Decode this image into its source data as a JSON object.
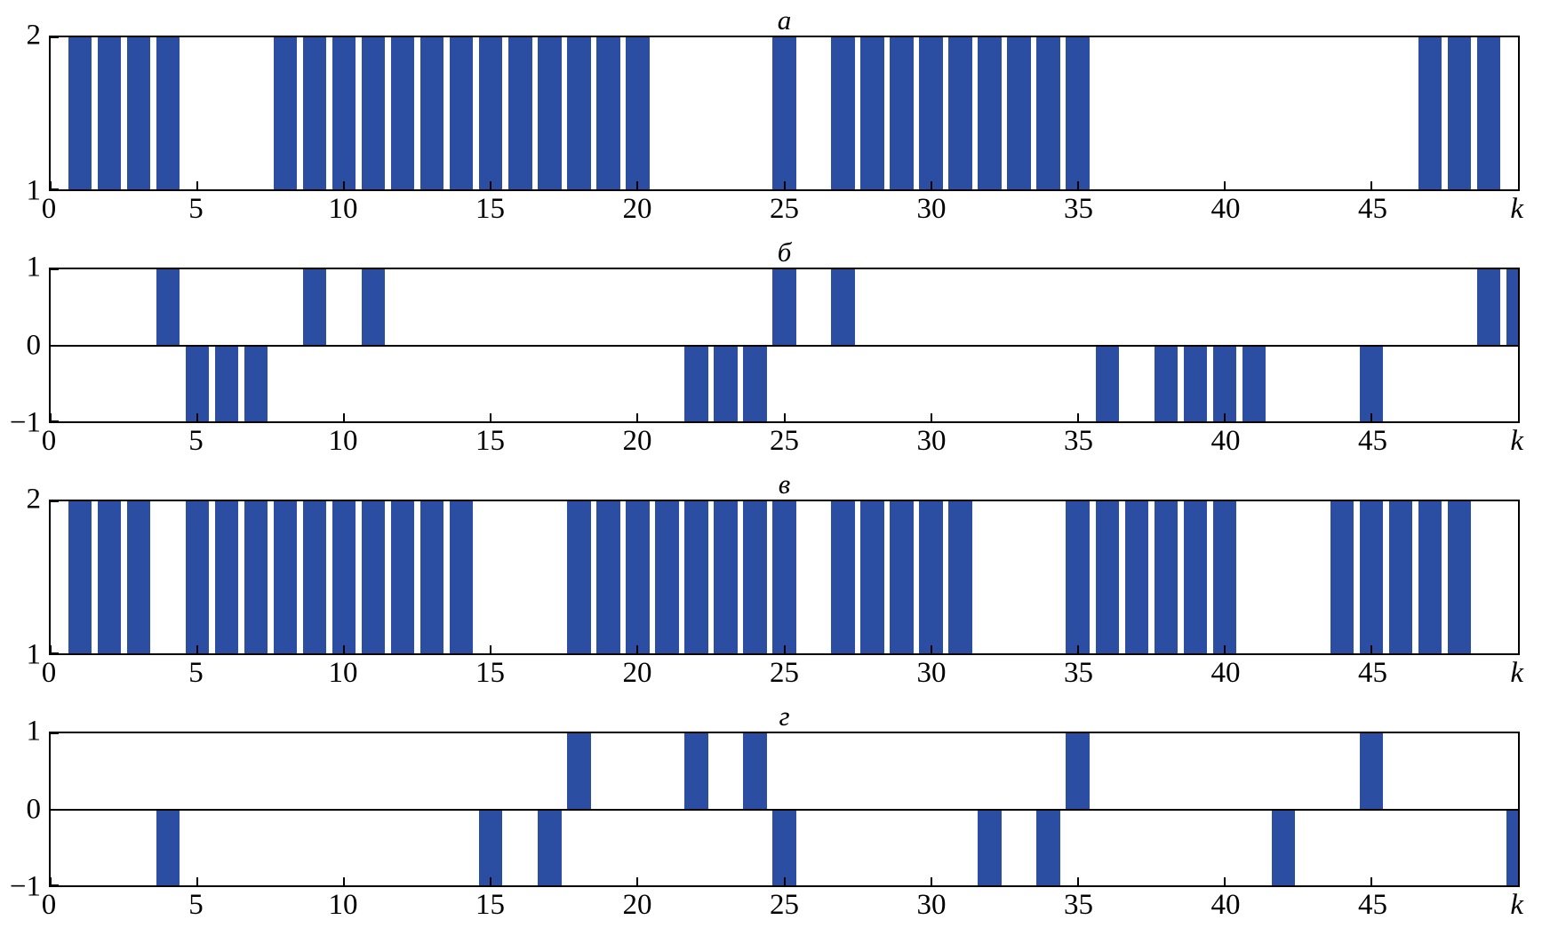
{
  "chart_data": {
    "type": "bar",
    "description": "Four stacked pulse-train (discrete impulse sequence) panels labeled with Cyrillic letters",
    "x_axis": {
      "label": "k",
      "ticks": [
        0,
        5,
        10,
        15,
        20,
        25,
        30,
        35,
        40,
        45
      ],
      "range": [
        0,
        50
      ]
    },
    "bar_width_units": 0.8,
    "panels": [
      {
        "title": "а",
        "kind": "levels",
        "ylim": [
          1,
          2
        ],
        "ytick_labels": {
          "top": "2",
          "bottom": "1"
        },
        "bar_value": 2,
        "base_value": 1,
        "k_positions": [
          1,
          2,
          3,
          4,
          8,
          9,
          10,
          11,
          12,
          13,
          14,
          15,
          16,
          17,
          18,
          19,
          20,
          25,
          27,
          28,
          29,
          30,
          31,
          32,
          33,
          34,
          35,
          47,
          48,
          49
        ]
      },
      {
        "title": "б",
        "kind": "signed",
        "ylim": [
          -1,
          1
        ],
        "ytick_labels": {
          "top": "1",
          "mid": "0",
          "bottom": "−1"
        },
        "positive_k": [
          4,
          9,
          11,
          25,
          27,
          49,
          50
        ],
        "negative_k": [
          5,
          6,
          7,
          22,
          23,
          24,
          36,
          38,
          39,
          40,
          41,
          45
        ]
      },
      {
        "title": "в",
        "kind": "levels",
        "ylim": [
          1,
          2
        ],
        "ytick_labels": {
          "top": "2",
          "bottom": "1"
        },
        "bar_value": 2,
        "base_value": 1,
        "k_positions": [
          1,
          2,
          3,
          5,
          6,
          7,
          8,
          9,
          10,
          11,
          12,
          13,
          14,
          18,
          19,
          20,
          21,
          22,
          23,
          24,
          25,
          27,
          28,
          29,
          30,
          31,
          35,
          36,
          37,
          38,
          39,
          40,
          44,
          45,
          46,
          47,
          48
        ]
      },
      {
        "title": "г",
        "kind": "signed",
        "ylim": [
          -1,
          1
        ],
        "ytick_labels": {
          "top": "1",
          "mid": "0",
          "bottom": "−1"
        },
        "positive_k": [
          18,
          22,
          24,
          35,
          45
        ],
        "negative_k": [
          4,
          15,
          17,
          25,
          32,
          34,
          42,
          50
        ]
      }
    ]
  },
  "style": {
    "bar_color": "#2b4da2",
    "axis_color": "#000000",
    "background": "#ffffff"
  }
}
